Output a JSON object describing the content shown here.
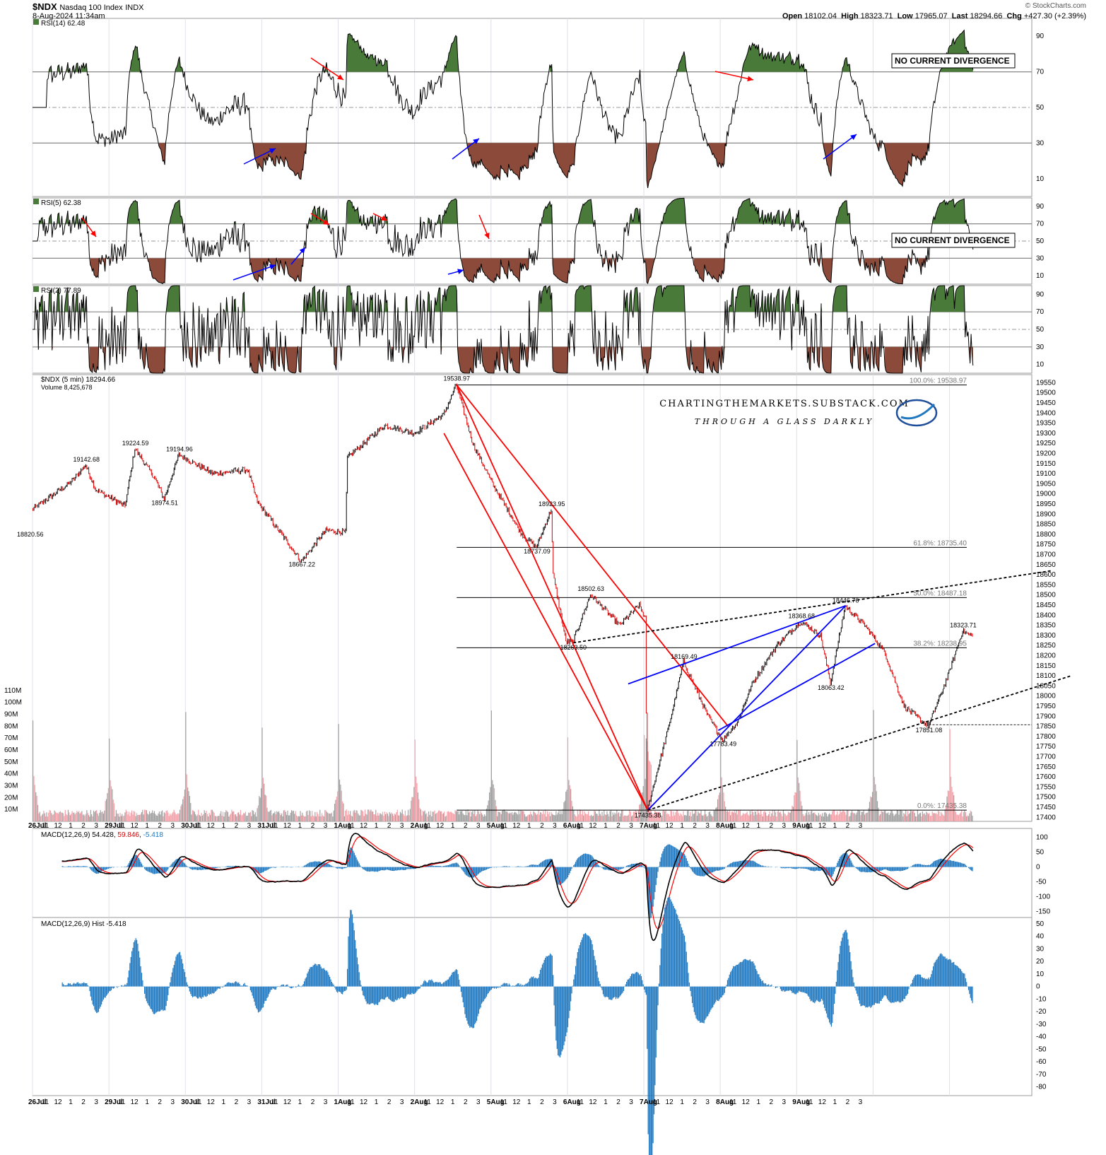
{
  "header": {
    "symbol": "$NDX",
    "name": "Nasdaq 100 Index",
    "exchange": "INDX",
    "date": "8-Aug-2024 11:34am",
    "open_label": "Open",
    "open": "18102.04",
    "high_label": "High",
    "high": "18323.71",
    "low_label": "Low",
    "low": "17965.07",
    "last_label": "Last",
    "last": "18294.66",
    "chg_label": "Chg",
    "chg": "+427.30 (+2.39%)",
    "copyright": "© StockCharts.com"
  },
  "colors": {
    "rsi_overbought": "#4a7a3a",
    "rsi_oversold": "#8b4a3a",
    "down_arrow": "#ff0000",
    "up_arrow": "#0000ff",
    "price_channel": "#ff0000",
    "wedge": "#0000ff",
    "macd_line": "#000000",
    "signal_line": "#ff0000",
    "histogram": "#1f78c0",
    "volume_up": "#f4a0a8",
    "volume_down": "#a0a0a0"
  },
  "watermark": {
    "line1": "CHARTINGTHEMARKETS.SUBSTACK.COM",
    "line2": "THROUGH A GLASS DARKLY"
  },
  "chart_data": [
    {
      "type": "line",
      "panel": "rsi14",
      "label": "RSI(14) 62.48",
      "ylim": [
        0,
        100
      ],
      "ticks": [
        "90",
        "70",
        "50",
        "30",
        "10"
      ],
      "annotation": "NO CURRENT DIVERGENCE",
      "last": 62.48
    },
    {
      "type": "line",
      "panel": "rsi5",
      "label": "RSI(5) 62.38",
      "ylim": [
        0,
        100
      ],
      "ticks": [
        "90",
        "70",
        "50",
        "30",
        "10"
      ],
      "annotation": "NO CURRENT DIVERGENCE",
      "last": 62.38
    },
    {
      "type": "line",
      "panel": "rsi2",
      "label": "RSI(2) 77.89",
      "ylim": [
        0,
        100
      ],
      "ticks": [
        "90",
        "70",
        "50",
        "30",
        "10"
      ],
      "last": 77.89
    },
    {
      "type": "line",
      "panel": "price",
      "label": "$NDX (5 min) 18294.66",
      "volume_label": "Volume 8,425,678",
      "ylim": [
        17380,
        19590
      ],
      "ticks": [
        "19550",
        "19500",
        "19450",
        "19400",
        "19350",
        "19300",
        "19250",
        "19200",
        "19150",
        "19100",
        "19050",
        "19000",
        "18950",
        "18900",
        "18850",
        "18800",
        "18750",
        "18700",
        "18650",
        "18600",
        "18550",
        "18500",
        "18450",
        "18400",
        "18350",
        "18300",
        "18250",
        "18200",
        "18150",
        "18100",
        "18050",
        "18000",
        "17950",
        "17900",
        "17850",
        "17800",
        "17750",
        "17700",
        "17650",
        "17600",
        "17550",
        "17500",
        "17450",
        "17400"
      ],
      "volume_ticks": [
        "110M",
        "100M",
        "90M",
        "80M",
        "70M",
        "60M",
        "50M",
        "40M",
        "30M",
        "20M",
        "10M"
      ],
      "fib_levels": [
        {
          "label": "100.0%: 19538.97",
          "value": 19538.97
        },
        {
          "label": "61.8%: 18735.40",
          "value": 18735.4
        },
        {
          "label": "50.0%: 18487.18",
          "value": 18487.18
        },
        {
          "label": "38.2%: 18238.95",
          "value": 18238.95
        },
        {
          "label": "0.0%: 17435.38",
          "value": 17435.38
        }
      ],
      "annotations": [
        "19538.97",
        "19142.68",
        "19224.59",
        "19194.96",
        "18974.51",
        "18820.56",
        "18667.22",
        "18923.95",
        "18737.09",
        "18502.63",
        "18263.50",
        "18169.49",
        "18368.68",
        "18446.76",
        "18063.42",
        "18323.71",
        "17783.49",
        "17851.08",
        "17435.38"
      ],
      "anchors": [
        {
          "t": 0,
          "v": 18920
        },
        {
          "t": 40,
          "v": 19060
        },
        {
          "t": 55,
          "v": 19142.68
        },
        {
          "t": 65,
          "v": 19020
        },
        {
          "t": 95,
          "v": 18940
        },
        {
          "t": 105,
          "v": 19224.59
        },
        {
          "t": 125,
          "v": 19080
        },
        {
          "t": 135,
          "v": 18974.51
        },
        {
          "t": 150,
          "v": 19194.96
        },
        {
          "t": 185,
          "v": 19100
        },
        {
          "t": 220,
          "v": 19120
        },
        {
          "t": 230,
          "v": 18960
        },
        {
          "t": 255,
          "v": 18800
        },
        {
          "t": 275,
          "v": 18667.22
        },
        {
          "t": 300,
          "v": 18820
        },
        {
          "t": 320,
          "v": 18810
        },
        {
          "t": 322,
          "v": 19180
        },
        {
          "t": 360,
          "v": 19340
        },
        {
          "t": 390,
          "v": 19300
        },
        {
          "t": 420,
          "v": 19390
        },
        {
          "t": 433,
          "v": 19538.97
        },
        {
          "t": 450,
          "v": 19250
        },
        {
          "t": 470,
          "v": 19050
        },
        {
          "t": 500,
          "v": 18800
        },
        {
          "t": 515,
          "v": 18737.09
        },
        {
          "t": 530,
          "v": 18923.95
        },
        {
          "t": 532,
          "v": 18600
        },
        {
          "t": 545,
          "v": 18270
        },
        {
          "t": 552,
          "v": 18263.5
        },
        {
          "t": 570,
          "v": 18502.63
        },
        {
          "t": 600,
          "v": 18350
        },
        {
          "t": 620,
          "v": 18450
        },
        {
          "t": 626,
          "v": 18380
        },
        {
          "t": 628,
          "v": 17435.38
        },
        {
          "t": 650,
          "v": 17850
        },
        {
          "t": 665,
          "v": 18169.49
        },
        {
          "t": 690,
          "v": 17900
        },
        {
          "t": 705,
          "v": 17783.49
        },
        {
          "t": 720,
          "v": 17870
        },
        {
          "t": 735,
          "v": 18060
        },
        {
          "t": 760,
          "v": 18250
        },
        {
          "t": 785,
          "v": 18368.68
        },
        {
          "t": 805,
          "v": 18300
        },
        {
          "t": 815,
          "v": 18063.42
        },
        {
          "t": 830,
          "v": 18446.76
        },
        {
          "t": 850,
          "v": 18350
        },
        {
          "t": 870,
          "v": 18220
        },
        {
          "t": 890,
          "v": 17950
        },
        {
          "t": 915,
          "v": 17851.08
        },
        {
          "t": 935,
          "v": 18100
        },
        {
          "t": 950,
          "v": 18323.71
        },
        {
          "t": 960,
          "v": 18294.66
        }
      ]
    },
    {
      "type": "line",
      "panel": "macd",
      "label": "MACD(12,26,9)",
      "macd": "54.428",
      "signal": "59.846",
      "hist": "-5.418",
      "ylim": [
        -170,
        130
      ],
      "ticks": [
        "100",
        "50",
        "0",
        "-50",
        "-100",
        "-150"
      ]
    },
    {
      "type": "bar",
      "panel": "macd_hist",
      "label": "MACD(12,26,9) Hist -5.418",
      "ylim": [
        -87,
        55
      ],
      "ticks": [
        "50",
        "40",
        "30",
        "20",
        "10",
        "0",
        "-10",
        "-20",
        "-30",
        "-40",
        "-50",
        "-60",
        "-70",
        "-80"
      ]
    }
  ],
  "xaxis": {
    "labels": [
      "26Jul",
      "11",
      "12",
      "1",
      "2",
      "3",
      "29Jul",
      "11",
      "12",
      "1",
      "2",
      "3",
      "30Jul",
      "11",
      "12",
      "1",
      "2",
      "3",
      "31Jul",
      "11",
      "12",
      "1",
      "2",
      "3",
      "1Aug",
      "11",
      "12",
      "1",
      "2",
      "3",
      "2Aug",
      "11",
      "12",
      "1",
      "2",
      "3",
      "5Aug",
      "11",
      "12",
      "1",
      "2",
      "3",
      "6Aug",
      "11",
      "12",
      "1",
      "2",
      "3",
      "7Aug",
      "11",
      "12",
      "1",
      "2",
      "3",
      "8Aug",
      "11",
      "12",
      "1",
      "2",
      "3",
      "9Aug",
      "11",
      "12",
      "1",
      "2",
      "3"
    ]
  }
}
